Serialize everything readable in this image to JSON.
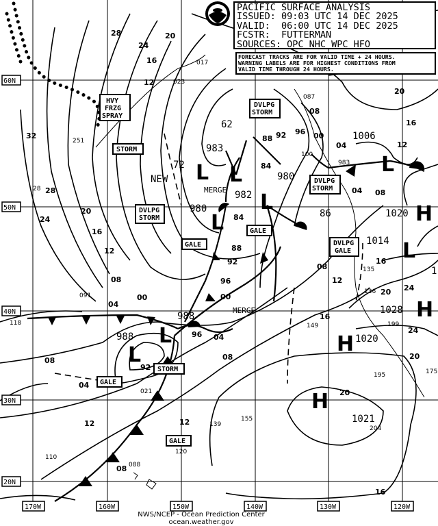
{
  "header": {
    "title": "PACIFIC SURFACE ANALYSIS",
    "issued": "ISSUED: 09:03 UTC 14 DEC 2025",
    "valid": "VALID:  06:00 UTC 14 DEC 2025",
    "forecaster": "FCSTR:  FUTTERMAN",
    "sources": "SOURCES: OPC NHC WPC HFO"
  },
  "notice": [
    "FORECAST TRACKS ARE FOR VALID TIME + 24 HOURS.",
    "WARNING LABELS ARE FOR HIGHEST CONDITIONS FROM",
    "VALID TIME THROUGH 24 HOURS."
  ],
  "logo": "NOAA",
  "latitudes": [
    "60N",
    "50N",
    "40N",
    "30N",
    "20N"
  ],
  "longitudes": [
    "170W",
    "160W",
    "150W",
    "140W",
    "130W",
    "120W"
  ],
  "footer": {
    "line1": "NWS/NCEP - Ocean Prediction Center",
    "line2": "ocean.weather.gov"
  },
  "centers": [
    {
      "type": "L",
      "pressure": "983"
    },
    {
      "type": "L",
      "pressure": "962"
    },
    {
      "type": "L",
      "pressure": "972"
    },
    {
      "type": "L",
      "pressure": "982"
    },
    {
      "type": "L",
      "pressure": "980"
    },
    {
      "type": "L",
      "pressure": "980"
    },
    {
      "type": "L",
      "pressure": "986"
    },
    {
      "type": "L",
      "pressure": "1006"
    },
    {
      "type": "L",
      "pressure": "1014"
    },
    {
      "type": "L",
      "pressure": "988"
    },
    {
      "type": "L",
      "pressure": "988"
    },
    {
      "type": "H",
      "pressure": "1020"
    },
    {
      "type": "H",
      "pressure": "1028"
    },
    {
      "type": "H",
      "pressure": "1020"
    },
    {
      "type": "H",
      "pressure": "1021"
    }
  ],
  "center_labels": {
    "c983": "983",
    "c62": "62",
    "c72": "72",
    "c982": "982",
    "c980a": "980",
    "c980b": "980",
    "c86": "86",
    "c1006": "1006",
    "c1014": "1014",
    "c988a": "988",
    "c988b": "988",
    "h1020a": "1020",
    "h1028": "1028",
    "h1020b": "1020",
    "h1021": "1021",
    "L": "L",
    "H": "H",
    "h_edge": "1"
  },
  "warnings": [
    {
      "lines": [
        "HVY",
        "FRZG",
        "SPRAY"
      ]
    },
    {
      "lines": [
        "STORM"
      ]
    },
    {
      "lines": [
        "DVLPG",
        "STORM"
      ]
    },
    {
      "lines": [
        "GALE"
      ]
    },
    {
      "lines": [
        "GALE"
      ]
    },
    {
      "lines": [
        "DVLPG",
        "STORM"
      ]
    },
    {
      "lines": [
        "DVLPG",
        "STORM"
      ]
    },
    {
      "lines": [
        "DVLPG",
        "GALE"
      ]
    },
    {
      "lines": [
        "STORM"
      ]
    },
    {
      "lines": [
        "GALE"
      ]
    },
    {
      "lines": [
        "GALE"
      ]
    }
  ],
  "annotations": {
    "new": "NEW",
    "merge1": "MERGE",
    "merge2": "MERGE"
  },
  "isobar_labels": [
    "28",
    "24",
    "20",
    "16",
    "12",
    "08",
    "04",
    "00",
    "32",
    "28",
    "24",
    "20",
    "16",
    "12",
    "08",
    "04",
    "00",
    "96",
    "92",
    "88",
    "84",
    "84",
    "88",
    "92",
    "96",
    "00",
    "04",
    "08",
    "12",
    "16",
    "20",
    "24",
    "20",
    "16",
    "12",
    "08",
    "04",
    "08",
    "12",
    "16",
    "20",
    "24",
    "20",
    "16",
    "96",
    "92",
    "04",
    "08",
    "12",
    "08"
  ],
  "ship_obs": [
    "251",
    "28",
    "091",
    "118",
    "021",
    "088",
    "110",
    "139",
    "155",
    "120",
    "149",
    "135",
    "136",
    "199",
    "195",
    "175",
    "204",
    "023",
    "017",
    "087",
    "100",
    "983"
  ]
}
